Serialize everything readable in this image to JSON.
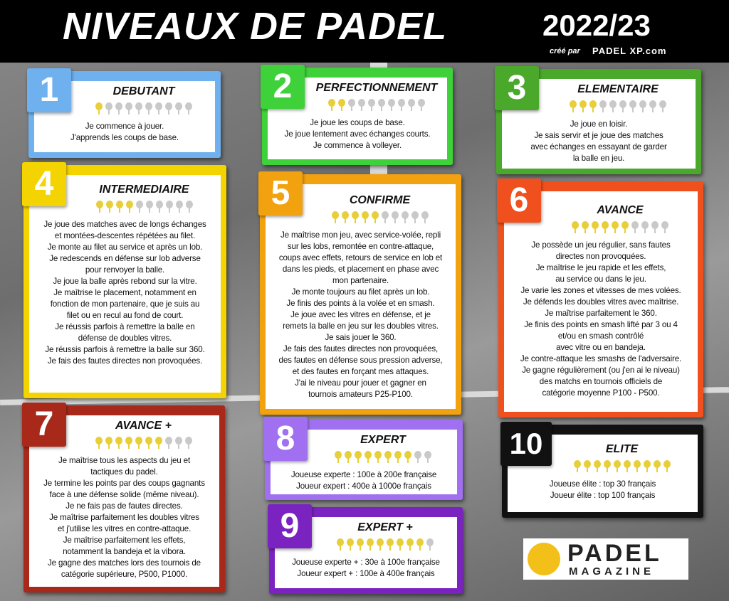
{
  "header": {
    "title": "NIVEAUX DE PADEL",
    "season": "2022/23",
    "credit_by": "créé par",
    "credit_site": "PADEL XP.com"
  },
  "logo": {
    "top": "PADEL",
    "bottom": "MAGAZINE"
  },
  "rating_max": 10,
  "levels": [
    {
      "number": "1",
      "name": "DEBUTANT",
      "rating": 1,
      "color": "#6fb1ee",
      "lines": [
        "Je commence à jouer.",
        "J'apprends les coups de base."
      ]
    },
    {
      "number": "2",
      "name": "PERFECTIONNEMENT",
      "rating": 2,
      "color": "#3fd13a",
      "lines": [
        "Je joue les coups de base.",
        "Je joue lentement avec échanges courts.",
        "Je commence à volleyer."
      ]
    },
    {
      "number": "3",
      "name": "ELEMENTAIRE",
      "rating": 3,
      "color": "#4aa82a",
      "lines": [
        "Je joue en loisir.",
        "Je sais servir et je joue des matches",
        "avec échanges en essayant de garder",
        "la balle en jeu."
      ]
    },
    {
      "number": "4",
      "name": "INTERMEDIAIRE",
      "rating": 4,
      "color": "#f4d400",
      "lines": [
        "Je joue des matches avec de longs échanges",
        "et montées-descentes répétées au filet.",
        "Je monte au filet au service et après un lob.",
        "Je redescends en défense sur lob adverse",
        "pour renvoyer la balle.",
        "Je joue la balle après rebond sur la vitre.",
        "Je maîtrise le placement, notamment en",
        "fonction de mon partenaire, que je suis au",
        "filet ou en recul au fond de court.",
        "Je réussis parfois à remettre la balle en",
        "défense de doubles vitres.",
        "Je réussis parfois à remettre la balle sur 360.",
        "Je fais des fautes directes non provoquées."
      ]
    },
    {
      "number": "5",
      "name": "CONFIRME",
      "rating": 5,
      "color": "#f2a20f",
      "lines": [
        "Je maîtrise mon jeu, avec service-volée, repli",
        "sur les lobs, remontée en contre-attaque,",
        "coups avec effets, retours de service en lob et",
        "dans les pieds, et placement en phase avec",
        "mon partenaire.",
        "Je monte toujours au filet après un lob.",
        "Je finis des points à la volée et en smash.",
        "Je joue avec les vitres en défense, et je",
        "remets la balle en jeu sur les doubles vitres.",
        "Je sais jouer le 360.",
        "Je fais des fautes directes non provoquées,",
        "des fautes en défense sous pression adverse,",
        "et des fautes en forçant mes attaques.",
        "J'ai le niveau pour jouer et gagner en",
        "tournois amateurs P25-P100."
      ]
    },
    {
      "number": "6",
      "name": "AVANCE",
      "rating": 6,
      "color": "#f0501e",
      "lines": [
        "Je possède un jeu régulier, sans fautes",
        "directes non provoquées.",
        "Je maîtrise le jeu rapide et les effets,",
        "au service ou dans le jeu.",
        "Je varie les zones et vitesses de mes volées.",
        "Je défends les doubles vitres avec maîtrise.",
        "Je maîtrise parfaitement le 360.",
        "Je finis des points en smash lifté par 3 ou 4",
        "et/ou en smash contrôlé",
        "avec vitre ou en bandeja.",
        "Je contre-attaque les smashs de l'adversaire.",
        "Je gagne régulièrement (ou j'en ai le niveau)",
        "des matchs en tournois officiels de",
        "catégorie moyenne P100 - P500."
      ]
    },
    {
      "number": "7",
      "name": "AVANCE +",
      "rating": 7,
      "color": "#a8281a",
      "lines": [
        "Je maîtrise tous les aspects du jeu et",
        "tactiques du padel.",
        "Je termine les points par des coups gagnants",
        "face à une défense solide (même niveau).",
        "Je ne fais pas de fautes directes.",
        "Je maîtrise parfaitement les doubles vitres",
        "et j'utilise les vitres en contre-attaque.",
        "Je maîtrise parfaitement les effets,",
        "notamment la bandeja et la vibora.",
        "Je gagne des matches lors des tournois de",
        "catégorie supérieure, P500, P1000."
      ]
    },
    {
      "number": "8",
      "name": "EXPERT",
      "rating": 8,
      "color": "#a070f0",
      "lines": [
        "Joueuse experte : 100e à 200e française",
        "Joueur expert : 400e à 1000e français"
      ]
    },
    {
      "number": "9",
      "name": "EXPERT +",
      "rating": 9,
      "color": "#7a23c0",
      "lines": [
        "Joueuse experte + : 30e à 100e française",
        "Joueur expert + : 100e à 400e français"
      ]
    },
    {
      "number": "10",
      "name": "ELITE",
      "rating": 10,
      "color": "#111111",
      "lines": [
        "Joueuse élite : top 30 français",
        "Joueur élite : top 100 français"
      ]
    }
  ]
}
